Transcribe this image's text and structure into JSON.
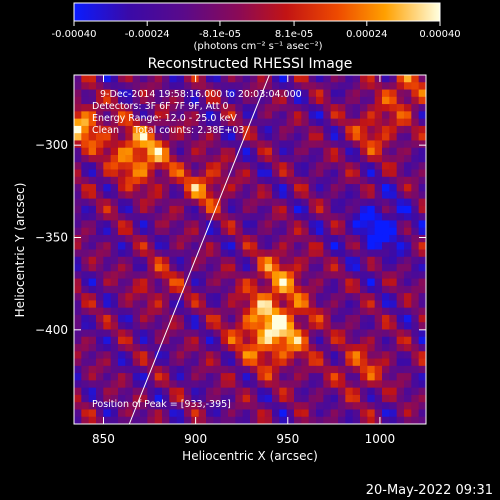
{
  "chart_data": {
    "type": "heatmap",
    "title": "Reconstructed RHESSI Image",
    "xlabel": "Heliocentric X (arcsec)",
    "ylabel": "Heliocentric Y (arcsec)",
    "xlim": [
      834,
      1025
    ],
    "ylim": [
      -451,
      -262
    ],
    "x_ticks": [
      850,
      900,
      950,
      1000
    ],
    "y_ticks": [
      -300,
      -350,
      -400
    ],
    "colorbar": {
      "range": [
        -0.0004,
        0.0004
      ],
      "tick_values": [
        -0.0004,
        -0.00024,
        -8.1e-05,
        8.1e-05,
        0.00024,
        0.0004
      ],
      "tick_labels": [
        "-0.00040",
        "-0.00024",
        "-8.1e-05",
        "8.1e-05",
        "0.00024",
        "0.00040"
      ],
      "unit_label": "(photons cm⁻² s⁻¹ asec⁻²)"
    },
    "annotations": [
      "9-Dec-2014 19:58:16.000 to 20:03:04.000",
      "Detectors: 3F 6F 7F 9F, Att 0",
      "Energy Range: 12.0 - 25.0 keV",
      "Clean     Total counts: 2.38E+03"
    ],
    "peak_label": "Position of Peak = [933,-395]",
    "peak": [
      933,
      -395
    ],
    "limb_line": [
      [
        864,
        -451
      ],
      [
        940,
        -262
      ]
    ],
    "sources": [
      {
        "x": 942,
        "y": -400,
        "amp": 1.0,
        "sigma": 14
      },
      {
        "x": 945,
        "y": -370,
        "amp": 0.55,
        "sigma": 10
      },
      {
        "x": 870,
        "y": -305,
        "amp": 0.85,
        "sigma": 12
      },
      {
        "x": 838,
        "y": -290,
        "amp": 0.8,
        "sigma": 9
      },
      {
        "x": 905,
        "y": -322,
        "amp": 0.6,
        "sigma": 9
      },
      {
        "x": 998,
        "y": -292,
        "amp": 0.5,
        "sigma": 10
      },
      {
        "x": 1015,
        "y": -270,
        "amp": 0.55,
        "sigma": 9
      },
      {
        "x": 880,
        "y": -375,
        "amp": 0.35,
        "sigma": 9
      },
      {
        "x": 990,
        "y": -420,
        "amp": 0.45,
        "sigma": 10
      },
      {
        "x": 1000,
        "y": -345,
        "amp": -0.65,
        "sigma": 10
      }
    ]
  },
  "footer": {
    "timestamp": "20-May-2022 09:31"
  }
}
